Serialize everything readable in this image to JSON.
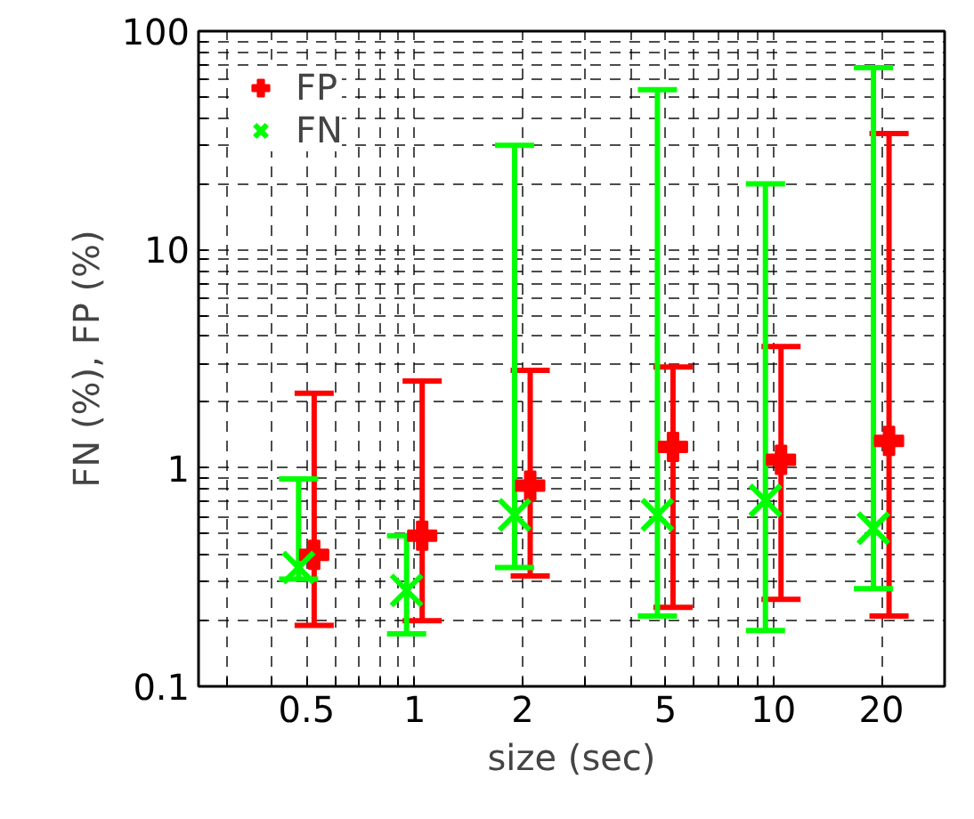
{
  "chart_data": {
    "type": "scatter",
    "xlabel": "size (sec)",
    "ylabel": "FN (%), FP (%)",
    "log": "xy",
    "grid": true,
    "legend": "top left",
    "xlim": [
      0.25,
      30
    ],
    "ylim": [
      0.1,
      100
    ],
    "xticks": [
      {
        "value": 0.3,
        "label": null
      },
      {
        "value": 0.4,
        "label": null
      },
      0.5,
      {
        "value": 0.6,
        "label": null
      },
      {
        "value": 0.7,
        "label": null
      },
      {
        "value": 0.8,
        "label": null
      },
      {
        "value": 0.9,
        "label": null
      },
      1,
      2,
      {
        "value": 3,
        "label": null
      },
      {
        "value": 4,
        "label": null
      },
      5,
      {
        "value": 6,
        "label": null
      },
      {
        "value": 7,
        "label": null
      },
      {
        "value": 8,
        "label": null
      },
      {
        "value": 9,
        "label": null
      },
      10,
      20,
      {
        "value": 30,
        "label": null
      }
    ],
    "yticks": [
      0.1,
      {
        "value": 0.2,
        "label": null
      },
      {
        "value": 0.3,
        "label": null
      },
      {
        "value": 0.4,
        "label": null
      },
      {
        "value": 0.5,
        "label": null
      },
      {
        "value": 0.6,
        "label": null
      },
      {
        "value": 0.7,
        "label": null
      },
      {
        "value": 0.8,
        "label": null
      },
      {
        "value": 0.9,
        "label": null
      },
      1,
      {
        "value": 2,
        "label": null
      },
      {
        "value": 3,
        "label": null
      },
      {
        "value": 4,
        "label": null
      },
      {
        "value": 5,
        "label": null
      },
      {
        "value": 6,
        "label": null
      },
      {
        "value": 7,
        "label": null
      },
      {
        "value": 8,
        "label": null
      },
      {
        "value": 9,
        "label": null
      },
      10,
      {
        "value": 20,
        "label": null
      },
      {
        "value": 30,
        "label": null
      },
      {
        "value": 40,
        "label": null
      },
      {
        "value": 50,
        "label": null
      },
      {
        "value": 60,
        "label": null
      },
      {
        "value": 70,
        "label": null
      },
      {
        "value": 80,
        "label": null
      },
      {
        "value": 90,
        "label": null
      },
      100
    ],
    "series": [
      {
        "name": "FP",
        "color": "#ff0000",
        "marker": "cross",
        "x": [
          0.525,
          1.05,
          2.1,
          5.25,
          10.5,
          21
        ],
        "values": [
          0.4,
          0.49,
          0.83,
          1.25,
          1.09,
          1.33
        ],
        "errors": [
          [
            0.19,
            2.2
          ],
          [
            0.2,
            2.5
          ],
          [
            0.32,
            2.8
          ],
          [
            0.23,
            2.9
          ],
          [
            0.25,
            3.6
          ],
          [
            0.21,
            34
          ]
        ]
      },
      {
        "name": "FN",
        "color": "#00ff00",
        "marker": "x",
        "x": [
          0.475,
          0.95,
          1.9,
          4.75,
          9.5,
          19
        ],
        "values": [
          0.35,
          0.275,
          0.61,
          0.61,
          0.71,
          0.53
        ],
        "errors": [
          [
            0.31,
            0.89
          ],
          [
            0.174,
            0.49
          ],
          [
            0.35,
            30
          ],
          [
            0.21,
            54
          ],
          [
            0.18,
            20
          ],
          [
            0.28,
            68
          ]
        ]
      }
    ]
  }
}
